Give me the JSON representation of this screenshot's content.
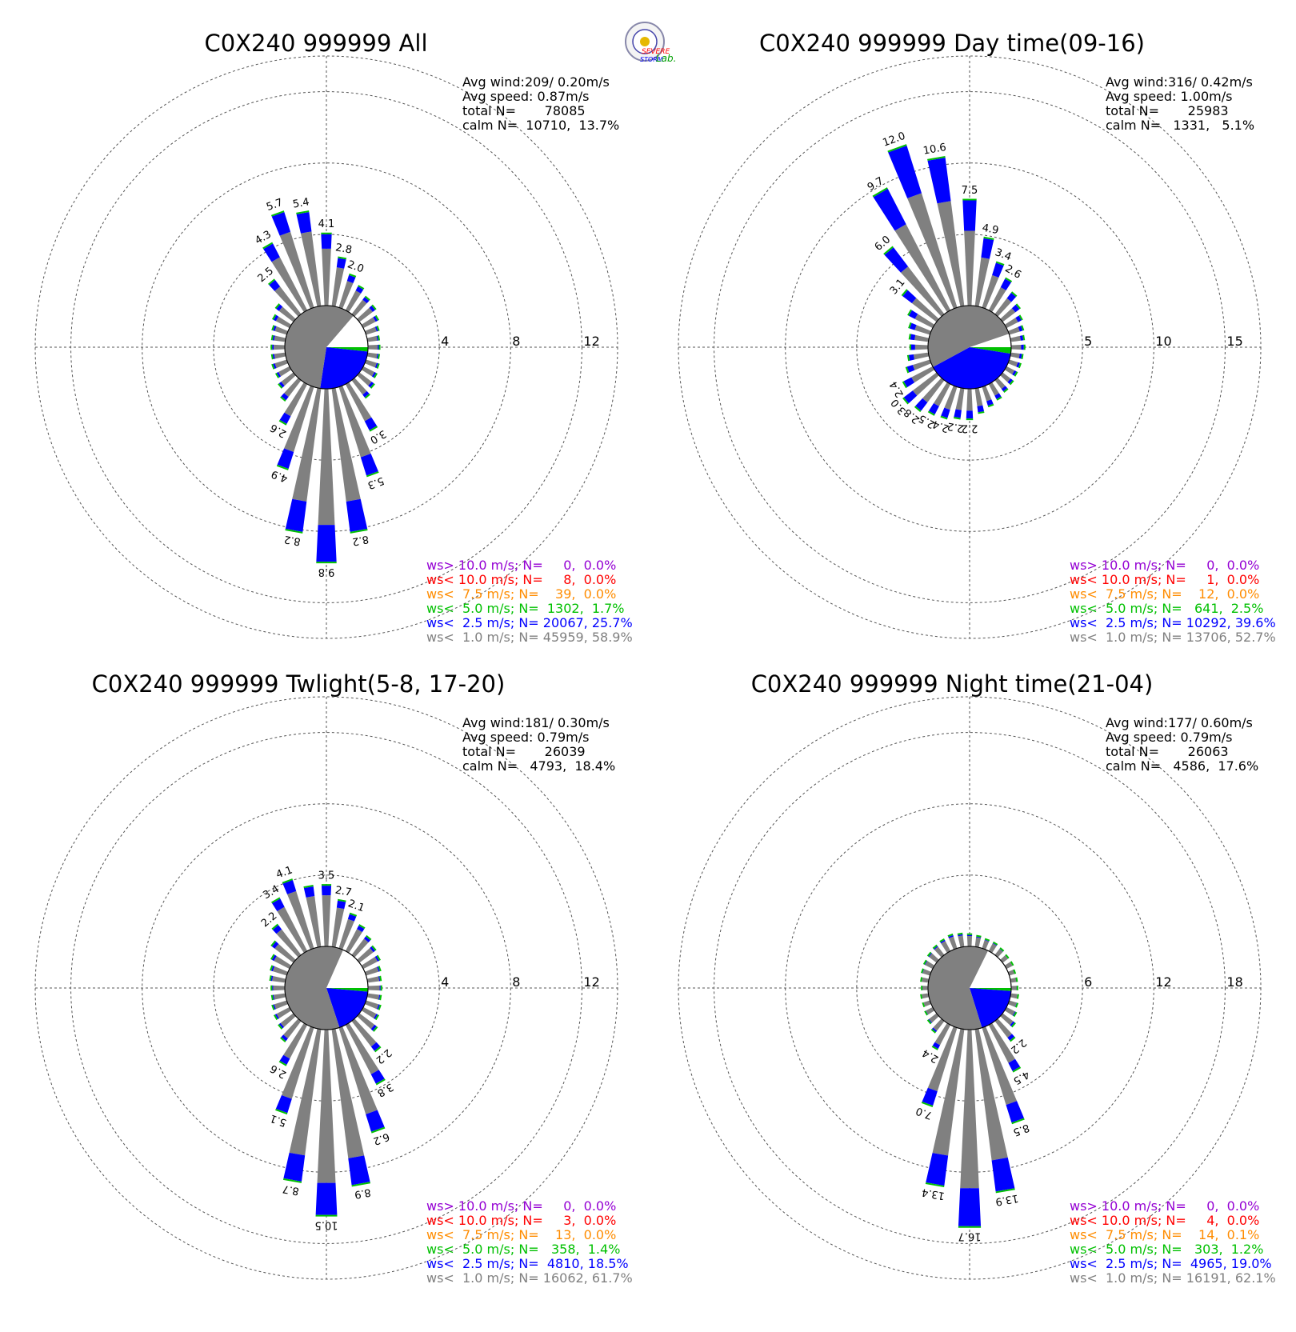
{
  "logo": {
    "text_top": "SEVERE",
    "text_bottom": "STORM",
    "text_right": "Lab."
  },
  "colors": {
    "calm": "#808080",
    "lt1": "#808080",
    "lt2_5": "#0000ff",
    "lt5": "#00c000",
    "lt7_5": "#ff8c00",
    "lt10": "#ff0000",
    "gt10": "#9400d3",
    "grid": "#555555"
  },
  "chart_data": [
    {
      "type": "windrose",
      "title": "C0X240 999999 All",
      "stats": [
        "Avg wind:209/ 0.20m/s",
        "Avg speed: 0.87m/s",
        "total N=       78085",
        "calm N=  10710,  13.7%"
      ],
      "rings": [
        "4",
        "8",
        "12"
      ],
      "rmax": 14,
      "calm_pct": 13.7,
      "legend": [
        {
          "text": "ws> 10.0 m/s; N=     0,  0.0%",
          "color": "#9400d3"
        },
        {
          "text": "ws< 10.0 m/s; N=     8,  0.0%",
          "color": "#ff0000"
        },
        {
          "text": "ws<  7.5 m/s; N=    39,  0.0%",
          "color": "#ff8c00"
        },
        {
          "text": "ws<  5.0 m/s; N=  1302,  1.7%",
          "color": "#00c000"
        },
        {
          "text": "ws<  2.5 m/s; N= 20067, 25.7%",
          "color": "#0000ff"
        },
        {
          "text": "ws<  1.0 m/s; N= 45959, 58.9%",
          "color": "#808080"
        }
      ],
      "directions": [
        0,
        10,
        20,
        30,
        40,
        50,
        60,
        70,
        80,
        90,
        100,
        110,
        120,
        130,
        140,
        150,
        160,
        170,
        180,
        190,
        200,
        210,
        220,
        230,
        240,
        250,
        260,
        270,
        280,
        290,
        300,
        310,
        320,
        330,
        340,
        350
      ],
      "totals": [
        4.1,
        2.8,
        2.0,
        1.6,
        1.3,
        1.2,
        1.0,
        0.8,
        0.7,
        0.7,
        0.7,
        0.8,
        0.9,
        1.1,
        1.3,
        3.0,
        5.3,
        8.2,
        9.8,
        8.2,
        4.9,
        2.6,
        1.5,
        1.1,
        0.9,
        0.9,
        0.8,
        0.8,
        0.8,
        0.9,
        1.1,
        1.3,
        2.5,
        4.3,
        5.7,
        5.4
      ],
      "blue_frac": 0.22,
      "labels": [
        {
          "dir": 0,
          "text": "4.1"
        },
        {
          "dir": 10,
          "text": "2.8"
        },
        {
          "dir": 20,
          "text": "2.0"
        },
        {
          "dir": 150,
          "text": "3.0"
        },
        {
          "dir": 160,
          "text": "5.3"
        },
        {
          "dir": 170,
          "text": "8.2"
        },
        {
          "dir": 180,
          "text": "9.8"
        },
        {
          "dir": 190,
          "text": "8.2"
        },
        {
          "dir": 200,
          "text": "4.9"
        },
        {
          "dir": 210,
          "text": "2.6"
        },
        {
          "dir": 320,
          "text": "2.5"
        },
        {
          "dir": 330,
          "text": "4.3"
        },
        {
          "dir": 340,
          "text": "5.7"
        },
        {
          "dir": 350,
          "text": "5.4"
        }
      ]
    },
    {
      "type": "windrose",
      "title": "C0X240 999999 Day time(09-16)",
      "stats": [
        "Avg wind:316/ 0.42m/s",
        "Avg speed: 1.00m/s",
        "total N=       25983",
        "calm N=   1331,   5.1%"
      ],
      "rings": [
        "5",
        "10",
        "15"
      ],
      "rmax": 17.5,
      "calm_pct": 5.1,
      "legend": [
        {
          "text": "ws> 10.0 m/s; N=     0,  0.0%",
          "color": "#9400d3"
        },
        {
          "text": "ws< 10.0 m/s; N=     1,  0.0%",
          "color": "#ff0000"
        },
        {
          "text": "ws<  7.5 m/s; N=    12,  0.0%",
          "color": "#ff8c00"
        },
        {
          "text": "ws<  5.0 m/s; N=   641,  2.5%",
          "color": "#00c000"
        },
        {
          "text": "ws<  2.5 m/s; N= 10292, 39.6%",
          "color": "#0000ff"
        },
        {
          "text": "ws<  1.0 m/s; N= 13706, 52.7%",
          "color": "#808080"
        }
      ],
      "directions": [
        0,
        10,
        20,
        30,
        40,
        50,
        60,
        70,
        80,
        90,
        100,
        110,
        120,
        130,
        140,
        150,
        160,
        170,
        180,
        190,
        200,
        210,
        220,
        230,
        240,
        250,
        260,
        270,
        280,
        290,
        300,
        310,
        320,
        330,
        340,
        350
      ],
      "totals": [
        7.5,
        4.9,
        3.4,
        2.6,
        2.0,
        1.6,
        1.3,
        1.1,
        1.0,
        1.0,
        0.9,
        0.9,
        0.9,
        1.0,
        1.1,
        1.3,
        1.5,
        1.8,
        2.2,
        2.2,
        2.4,
        2.5,
        2.8,
        3.0,
        2.4,
        1.8,
        1.5,
        1.3,
        1.4,
        1.6,
        2.0,
        3.1,
        6.0,
        9.7,
        12.0,
        10.6
      ],
      "blue_frac": 0.3,
      "labels": [
        {
          "dir": 0,
          "text": "7.5"
        },
        {
          "dir": 10,
          "text": "4.9"
        },
        {
          "dir": 20,
          "text": "3.4"
        },
        {
          "dir": 30,
          "text": "2.6"
        },
        {
          "dir": 180,
          "text": "2.2"
        },
        {
          "dir": 190,
          "text": "2.2"
        },
        {
          "dir": 200,
          "text": "2.4"
        },
        {
          "dir": 210,
          "text": "2.5"
        },
        {
          "dir": 220,
          "text": "2.8"
        },
        {
          "dir": 230,
          "text": "3.0"
        },
        {
          "dir": 240,
          "text": "2.4"
        },
        {
          "dir": 310,
          "text": "3.1"
        },
        {
          "dir": 320,
          "text": "6.0"
        },
        {
          "dir": 330,
          "text": "9.7"
        },
        {
          "dir": 340,
          "text": "12.0"
        },
        {
          "dir": 350,
          "text": "10.6"
        }
      ]
    },
    {
      "type": "windrose",
      "title": "C0X240 999999 Twlight(5-8, 17-20)",
      "stats": [
        "Avg wind:181/ 0.30m/s",
        "Avg speed: 0.79m/s",
        "total N=       26039",
        "calm N=   4793,  18.4%"
      ],
      "rings": [
        "4",
        "8",
        "12"
      ],
      "rmax": 14,
      "calm_pct": 18.4,
      "legend": [
        {
          "text": "ws> 10.0 m/s; N=     0,  0.0%",
          "color": "#9400d3"
        },
        {
          "text": "ws< 10.0 m/s; N=     3,  0.0%",
          "color": "#ff0000"
        },
        {
          "text": "ws<  7.5 m/s; N=    13,  0.0%",
          "color": "#ff8c00"
        },
        {
          "text": "ws<  5.0 m/s; N=   358,  1.4%",
          "color": "#00c000"
        },
        {
          "text": "ws<  2.5 m/s; N=  4810, 18.5%",
          "color": "#0000ff"
        },
        {
          "text": "ws<  1.0 m/s; N= 16062, 61.7%",
          "color": "#808080"
        }
      ],
      "directions": [
        0,
        10,
        20,
        30,
        40,
        50,
        60,
        70,
        80,
        90,
        100,
        110,
        120,
        130,
        140,
        150,
        160,
        170,
        180,
        190,
        200,
        210,
        220,
        230,
        240,
        250,
        260,
        270,
        280,
        290,
        300,
        310,
        320,
        330,
        340,
        350
      ],
      "totals": [
        3.5,
        2.7,
        2.1,
        1.7,
        1.4,
        1.2,
        1.1,
        0.9,
        0.8,
        0.8,
        0.8,
        0.9,
        1.0,
        1.3,
        2.2,
        3.8,
        6.2,
        8.9,
        10.5,
        8.7,
        5.1,
        2.6,
        1.5,
        1.1,
        1.0,
        0.9,
        0.8,
        0.8,
        0.9,
        1.0,
        1.2,
        1.6,
        2.2,
        3.4,
        4.1,
        3.5
      ],
      "blue_frac": 0.18,
      "labels": [
        {
          "dir": 0,
          "text": "3.5"
        },
        {
          "dir": 10,
          "text": "2.7"
        },
        {
          "dir": 20,
          "text": "2.1"
        },
        {
          "dir": 140,
          "text": "2.2"
        },
        {
          "dir": 150,
          "text": "3.8"
        },
        {
          "dir": 160,
          "text": "6.2"
        },
        {
          "dir": 170,
          "text": "8.9"
        },
        {
          "dir": 180,
          "text": "10.5"
        },
        {
          "dir": 190,
          "text": "8.7"
        },
        {
          "dir": 200,
          "text": "5.1"
        },
        {
          "dir": 210,
          "text": "2.6"
        },
        {
          "dir": 320,
          "text": "2.2"
        },
        {
          "dir": 330,
          "text": "3.4"
        },
        {
          "dir": 340,
          "text": "4.1"
        }
      ]
    },
    {
      "type": "windrose",
      "title": "C0X240 999999 Night time(21-04)",
      "stats": [
        "Avg wind:177/ 0.60m/s",
        "Avg speed: 0.79m/s",
        "total N=       26063",
        "calm N=   4586,  17.6%"
      ],
      "rings": [
        "6",
        "12",
        "18"
      ],
      "rmax": 21,
      "calm_pct": 17.6,
      "legend": [
        {
          "text": "ws> 10.0 m/s; N=     0,  0.0%",
          "color": "#9400d3"
        },
        {
          "text": "ws< 10.0 m/s; N=     4,  0.0%",
          "color": "#ff0000"
        },
        {
          "text": "ws<  7.5 m/s; N=    14,  0.1%",
          "color": "#ff8c00"
        },
        {
          "text": "ws<  5.0 m/s; N=   303,  1.2%",
          "color": "#00c000"
        },
        {
          "text": "ws<  2.5 m/s; N=  4965, 19.0%",
          "color": "#0000ff"
        },
        {
          "text": "ws<  1.0 m/s; N= 16191, 62.1%",
          "color": "#808080"
        }
      ],
      "directions": [
        0,
        10,
        20,
        30,
        40,
        50,
        60,
        70,
        80,
        90,
        100,
        110,
        120,
        130,
        140,
        150,
        160,
        170,
        180,
        190,
        200,
        210,
        220,
        230,
        240,
        250,
        260,
        270,
        280,
        290,
        300,
        310,
        320,
        330,
        340,
        350
      ],
      "totals": [
        1.1,
        1.0,
        0.9,
        0.9,
        0.8,
        0.7,
        0.7,
        0.6,
        0.6,
        0.6,
        0.7,
        0.8,
        1.0,
        1.4,
        2.2,
        4.5,
        8.5,
        13.9,
        16.7,
        13.4,
        7.0,
        2.4,
        1.3,
        1.0,
        0.8,
        0.7,
        0.7,
        0.6,
        0.7,
        0.8,
        0.9,
        1.0,
        1.1,
        1.2,
        1.3,
        1.2
      ],
      "blue_frac": 0.2,
      "labels": [
        {
          "dir": 140,
          "text": "2.2"
        },
        {
          "dir": 150,
          "text": "4.5"
        },
        {
          "dir": 160,
          "text": "8.5"
        },
        {
          "dir": 170,
          "text": "13.9"
        },
        {
          "dir": 180,
          "text": "16.7"
        },
        {
          "dir": 190,
          "text": "13.4"
        },
        {
          "dir": 200,
          "text": "7.0"
        },
        {
          "dir": 210,
          "text": "2.4"
        }
      ]
    }
  ]
}
